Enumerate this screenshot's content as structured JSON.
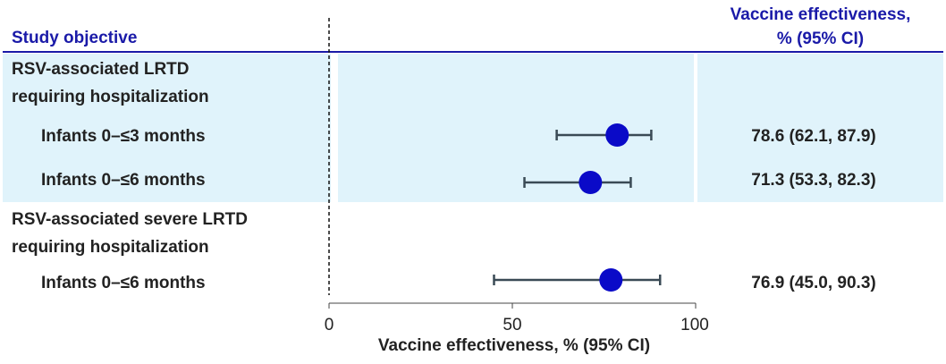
{
  "header": {
    "study_objective": "Study objective",
    "ve_line1": "Vaccine effectiveness,",
    "ve_line2": "% (95% CI)"
  },
  "colors": {
    "header_text": "#1a1aa8",
    "band": "#e0f3fb",
    "marker": "#0a0ac8",
    "ci_line": "#3a4a55",
    "rule": "#1a1aa8"
  },
  "chart_data": {
    "type": "forest",
    "xlim": [
      0,
      100
    ],
    "xticks": [
      0,
      50,
      100
    ],
    "xlabel": "Vaccine effectiveness, % (95% CI)",
    "groups": [
      {
        "title_line1": "RSV-associated LRTD",
        "title_line2": "requiring hospitalization",
        "highlighted": true,
        "rows": [
          {
            "label": "Infants 0–≤3 months",
            "estimate": 78.6,
            "lower": 62.1,
            "upper": 87.9,
            "display": "78.6 (62.1, 87.9)"
          },
          {
            "label": "Infants 0–≤6 months",
            "estimate": 71.3,
            "lower": 53.3,
            "upper": 82.3,
            "display": "71.3 (53.3, 82.3)"
          }
        ]
      },
      {
        "title_line1": "RSV-associated severe LRTD",
        "title_line2": "requiring hospitalization",
        "highlighted": false,
        "rows": [
          {
            "label": "Infants 0–≤6 months",
            "estimate": 76.9,
            "lower": 45.0,
            "upper": 90.3,
            "display": "76.9 (45.0, 90.3)"
          }
        ]
      }
    ]
  }
}
